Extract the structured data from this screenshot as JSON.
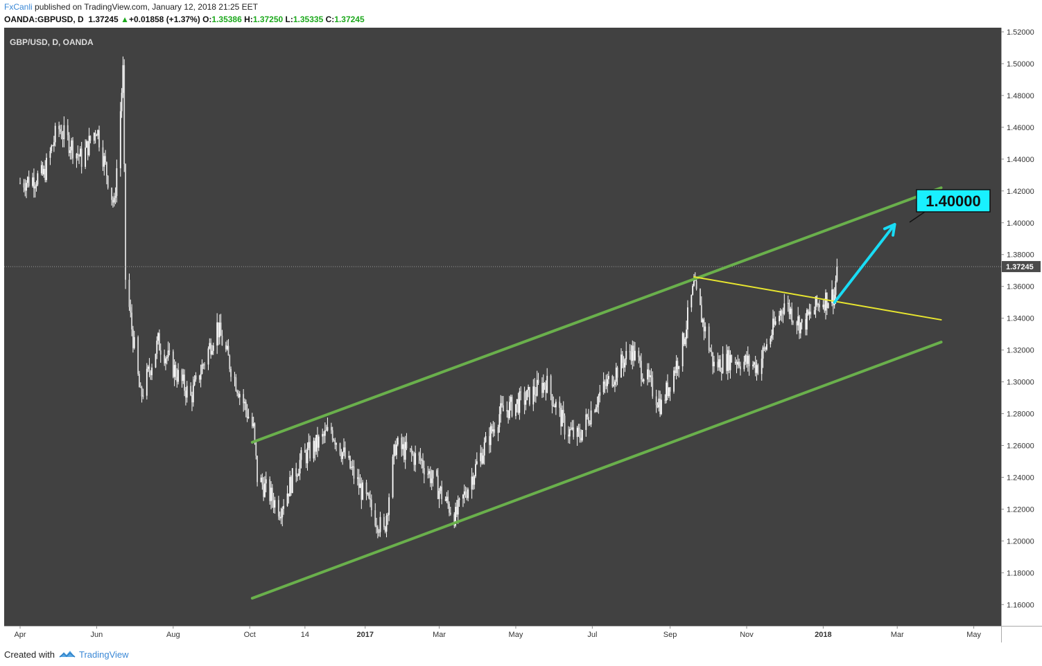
{
  "header": {
    "author": "FxCanli",
    "published_text": " published on TradingView.com, January 12, 2018 21:25 EET"
  },
  "quote": {
    "symbol": "OANDA:GBPUSD, D",
    "last": "1.37245",
    "arrow": "▲",
    "change": "+0.01858 (+1.37%)",
    "open_label": "O:",
    "open": "1.35386",
    "high_label": "H:",
    "high": "1.37250",
    "low_label": "L:",
    "low": "1.35335",
    "close_label": "C:",
    "close": "1.37245"
  },
  "footer": {
    "created_with": "Created with",
    "brand": "TradingView"
  },
  "colors": {
    "panel": "#414141",
    "candle": "#ffffff",
    "channel": "#6ab04c",
    "trendline": "#e8e62f",
    "arrow": "#19dcf5",
    "target_box": "#19f0ff",
    "price_tag": "#4a4a4a"
  },
  "chart_data": {
    "type": "candlestick",
    "title": "GBP/USD, D, OANDA",
    "ylim": [
      1.15,
      1.525
    ],
    "y_ticks": [
      "1.52000",
      "1.50000",
      "1.48000",
      "1.46000",
      "1.44000",
      "1.42000",
      "1.40000",
      "1.38000",
      "1.36000",
      "1.34000",
      "1.32000",
      "1.30000",
      "1.28000",
      "1.26000",
      "1.24000",
      "1.22000",
      "1.20000",
      "1.18000",
      "1.16000"
    ],
    "x_ticks": [
      "Apr",
      "Jun",
      "Aug",
      "Oct",
      "14",
      "2017",
      "Mar",
      "May",
      "Jul",
      "Sep",
      "Nov",
      "2018",
      "Mar",
      "May"
    ],
    "bold_x_ticks": [
      "2017",
      "2018"
    ],
    "last_price": "1.37245",
    "close_path": [
      {
        "t": "2016-04-01",
        "v": 1.425
      },
      {
        "t": "2016-04-20",
        "v": 1.43
      },
      {
        "t": "2016-05-01",
        "v": 1.46
      },
      {
        "t": "2016-05-20",
        "v": 1.44
      },
      {
        "t": "2016-06-01",
        "v": 1.46
      },
      {
        "t": "2016-06-15",
        "v": 1.41
      },
      {
        "t": "2016-06-22",
        "v": 1.495
      },
      {
        "t": "2016-06-24",
        "v": 1.365
      },
      {
        "t": "2016-07-06",
        "v": 1.29
      },
      {
        "t": "2016-07-20",
        "v": 1.325
      },
      {
        "t": "2016-08-15",
        "v": 1.29
      },
      {
        "t": "2016-09-05",
        "v": 1.335
      },
      {
        "t": "2016-09-20",
        "v": 1.3
      },
      {
        "t": "2016-10-04",
        "v": 1.27
      },
      {
        "t": "2016-10-07",
        "v": 1.24
      },
      {
        "t": "2016-10-25",
        "v": 1.22
      },
      {
        "t": "2016-11-10",
        "v": 1.25
      },
      {
        "t": "2016-12-05",
        "v": 1.27
      },
      {
        "t": "2016-12-30",
        "v": 1.23
      },
      {
        "t": "2017-01-16",
        "v": 1.205
      },
      {
        "t": "2017-01-25",
        "v": 1.26
      },
      {
        "t": "2017-02-15",
        "v": 1.25
      },
      {
        "t": "2017-03-14",
        "v": 1.215
      },
      {
        "t": "2017-04-01",
        "v": 1.25
      },
      {
        "t": "2017-04-18",
        "v": 1.28
      },
      {
        "t": "2017-05-10",
        "v": 1.29
      },
      {
        "t": "2017-05-25",
        "v": 1.3
      },
      {
        "t": "2017-06-10",
        "v": 1.27
      },
      {
        "t": "2017-06-20",
        "v": 1.265
      },
      {
        "t": "2017-07-05",
        "v": 1.29
      },
      {
        "t": "2017-08-01",
        "v": 1.32
      },
      {
        "t": "2017-08-25",
        "v": 1.285
      },
      {
        "t": "2017-09-10",
        "v": 1.32
      },
      {
        "t": "2017-09-20",
        "v": 1.36
      },
      {
        "t": "2017-10-06",
        "v": 1.31
      },
      {
        "t": "2017-10-20",
        "v": 1.315
      },
      {
        "t": "2017-11-10",
        "v": 1.31
      },
      {
        "t": "2017-12-01",
        "v": 1.35
      },
      {
        "t": "2017-12-15",
        "v": 1.335
      },
      {
        "t": "2017-12-29",
        "v": 1.35
      },
      {
        "t": "2018-01-10",
        "v": 1.355
      },
      {
        "t": "2018-01-12",
        "v": 1.372
      }
    ],
    "annotations": {
      "channel_upper": [
        {
          "t": "2016-10-03",
          "v": 1.262
        },
        {
          "t": "2018-04-05",
          "v": 1.422
        }
      ],
      "channel_lower": [
        {
          "t": "2016-10-03",
          "v": 1.164
        },
        {
          "t": "2018-04-05",
          "v": 1.325
        }
      ],
      "trendline": [
        {
          "t": "2017-09-20",
          "v": 1.366
        },
        {
          "t": "2018-04-05",
          "v": 1.339
        }
      ],
      "arrow": [
        {
          "t": "2018-01-10",
          "v": 1.35
        },
        {
          "t": "2018-02-27",
          "v": 1.399
        }
      ],
      "target_label": "1.40000"
    }
  }
}
